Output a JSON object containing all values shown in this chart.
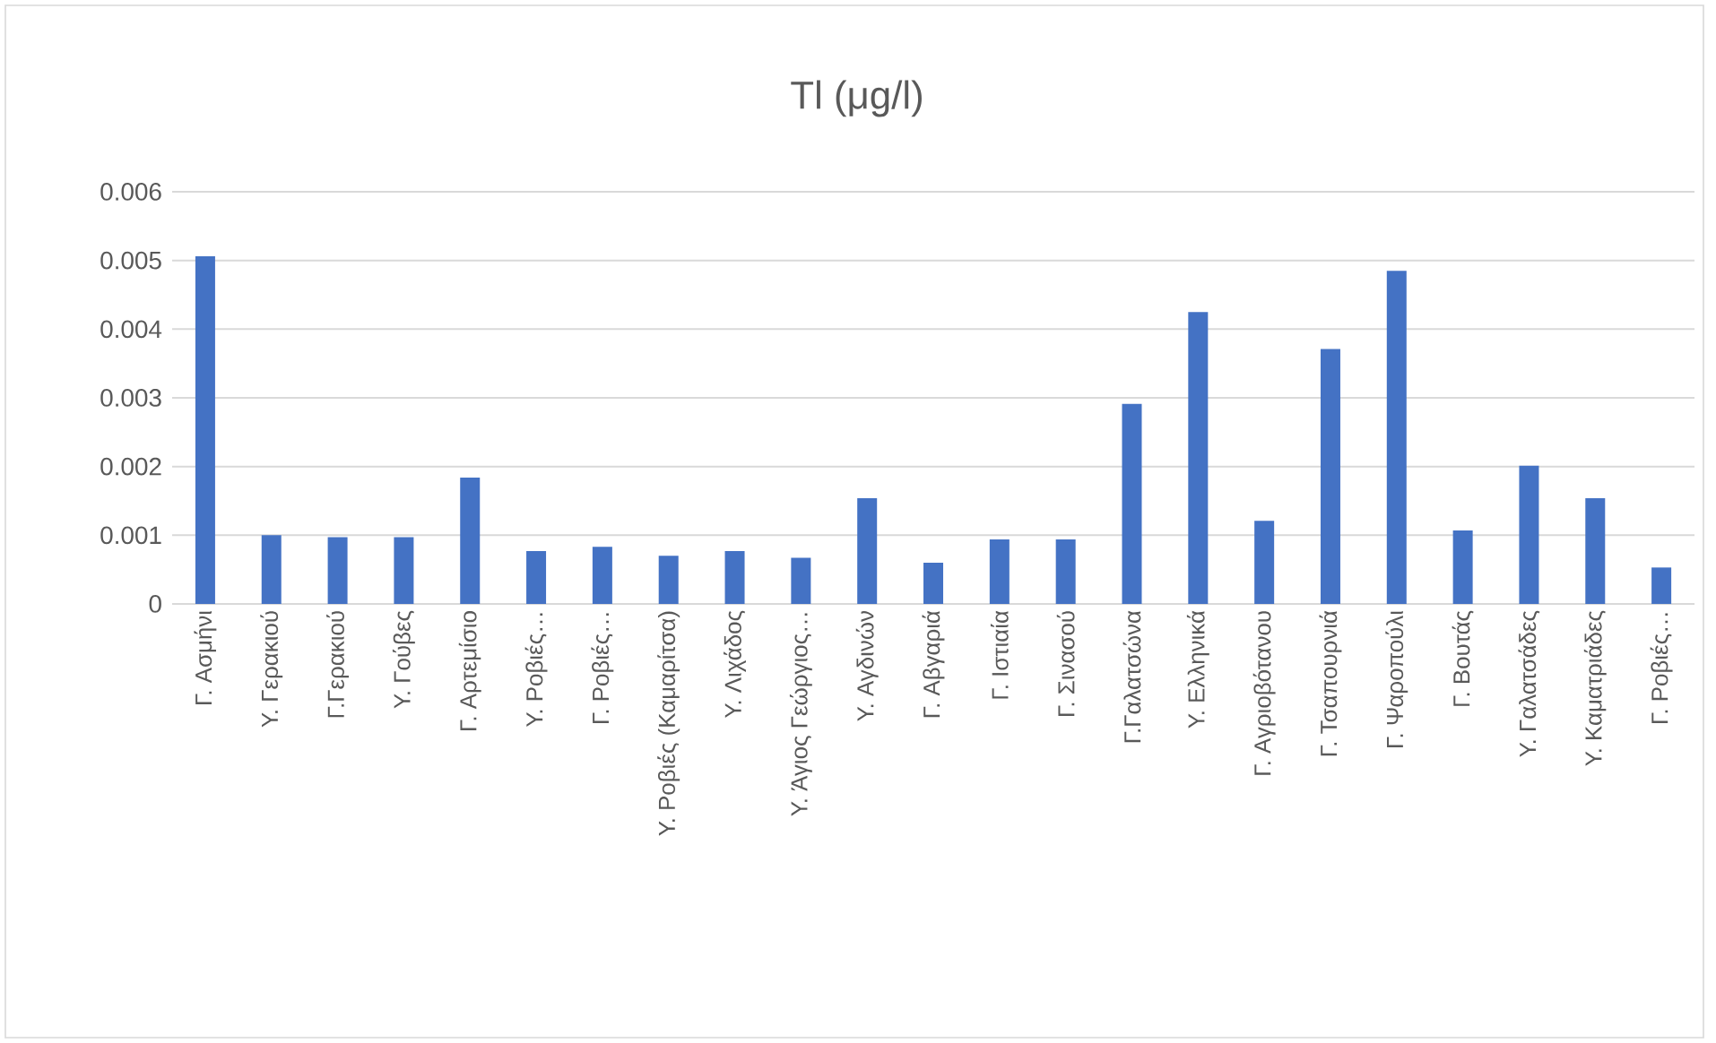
{
  "chart_data": {
    "type": "bar",
    "title": "Tl (μg/l)",
    "categories": [
      "Γ. Ασμήνι",
      "Υ. Γερακιού",
      "Γ.Γερακιού",
      "Υ. Γούβες",
      "Γ. Αρτεμίσιο",
      "Υ. Ροβιές…",
      "Γ. Ροβιές…",
      "Υ. Ροβιές (Καμαρίτσα)",
      "Υ. Λιχάδος",
      "Υ. Άγιος Γεώργιος…",
      "Υ. Αγδινών",
      "Γ. Αβγαριά",
      "Γ. Ιστιαία",
      "Γ. Σινασού",
      "Γ.Γαλατσώνα",
      "Υ. Ελληνικά",
      "Γ. Αγριοβότανου",
      "Γ. Τσαπουρνιά",
      "Γ. Ψαροπούλι",
      "Γ. Βουτάς",
      "Υ. Γαλατσάδες",
      "Υ. Καματριάδες",
      "Γ. Ροβιές…"
    ],
    "values": [
      0.00506,
      0.001,
      0.00097,
      0.00097,
      0.00184,
      0.00077,
      0.00083,
      0.0007,
      0.00077,
      0.00067,
      0.00154,
      0.0006,
      0.00094,
      0.00094,
      0.00291,
      0.00425,
      0.00121,
      0.00371,
      0.00485,
      0.00107,
      0.00201,
      0.00154,
      0.00053
    ],
    "color": "#4472c4",
    "ylim": [
      0,
      0.006
    ],
    "yticks": [
      0,
      0.001,
      0.002,
      0.003,
      0.004,
      0.005,
      0.006
    ],
    "grid": "y"
  }
}
